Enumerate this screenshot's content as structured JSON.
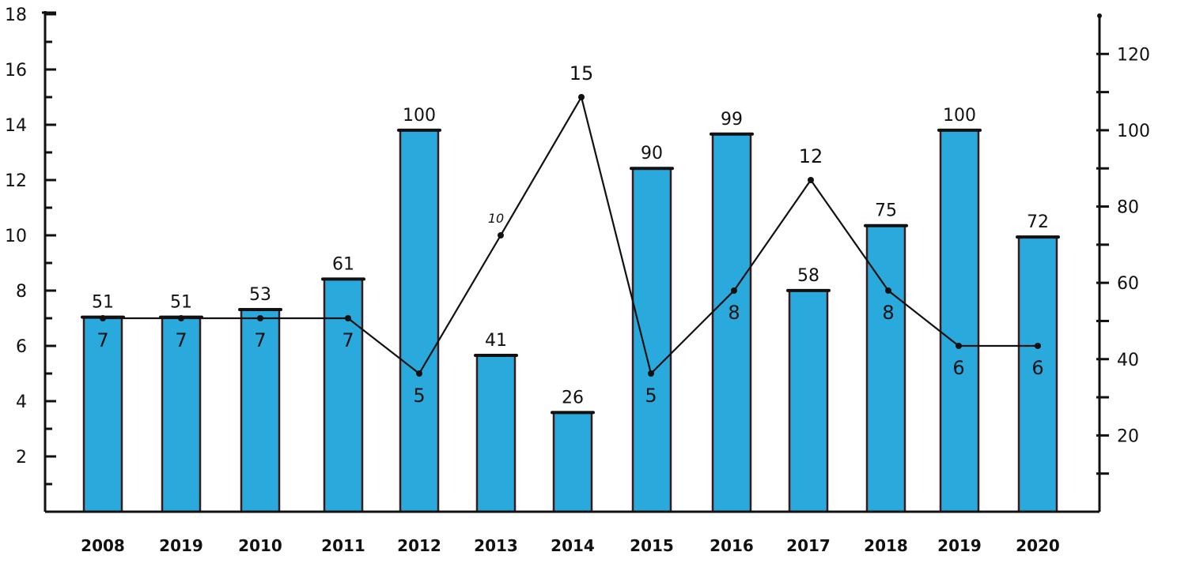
{
  "chart_data": {
    "type": "bar",
    "categories": [
      "2008",
      "2019",
      "2010",
      "2011",
      "2012",
      "2013",
      "2014",
      "2015",
      "2016",
      "2017",
      "2018",
      "2019",
      "2020"
    ],
    "series": [
      {
        "type": "bar",
        "axis": "right",
        "values": [
          51,
          51,
          53,
          61,
          100,
          41,
          26,
          90,
          99,
          58,
          75,
          100,
          72
        ],
        "color": "#29a9dc"
      },
      {
        "type": "line",
        "axis": "left",
        "values": [
          7,
          7,
          7,
          7,
          5,
          10,
          15,
          5,
          8,
          12,
          8,
          6,
          6
        ],
        "color": "#111111"
      }
    ],
    "y_left": {
      "min": 0,
      "max": 18,
      "ticks": [
        "2",
        "4",
        "6",
        "8",
        "10",
        "12",
        "14",
        "16",
        "18"
      ]
    },
    "y_right": {
      "min": 0,
      "max": 130,
      "ticks": [
        "20",
        "40",
        "60",
        "80",
        "100",
        "120"
      ]
    },
    "grid": false,
    "legend": "none"
  }
}
